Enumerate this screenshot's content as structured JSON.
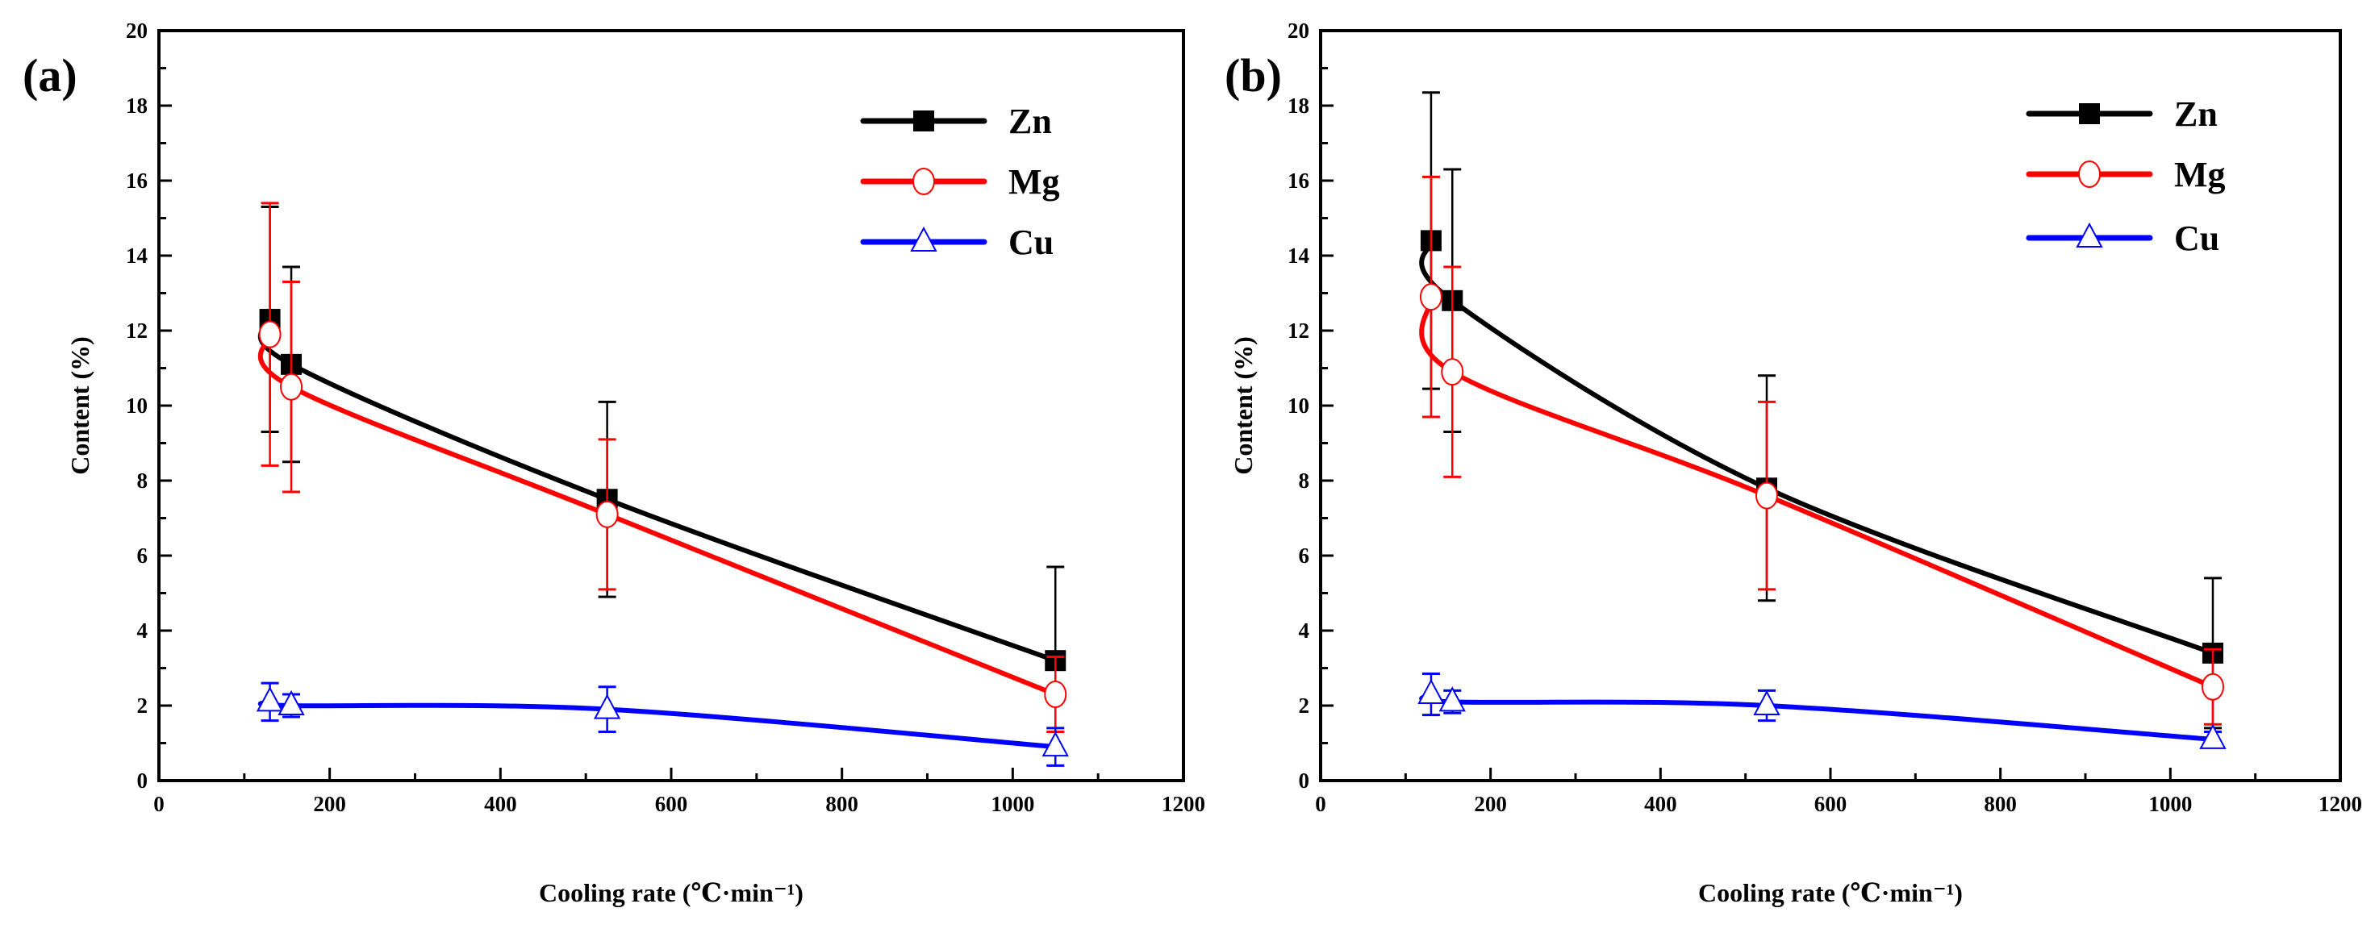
{
  "chart_data": [
    {
      "type": "line",
      "panel_label": "(a)",
      "xlabel": "Cooling rate (℃·min⁻¹)",
      "ylabel": "Content (%)",
      "xlim": [
        0,
        1200
      ],
      "ylim": [
        0,
        20
      ],
      "xticks": [
        "0",
        "200",
        "400",
        "600",
        "800",
        "1000",
        "1200"
      ],
      "yticks": [
        "0",
        "2",
        "4",
        "6",
        "8",
        "10",
        "12",
        "14",
        "16",
        "18",
        "20"
      ],
      "grid": false,
      "legend_position": "top-right",
      "x": [
        130,
        155,
        525,
        1050
      ],
      "series": [
        {
          "name": "Zn",
          "color": "#000000",
          "marker": "filled-square",
          "values": [
            12.3,
            11.1,
            7.5,
            3.2
          ],
          "errors": [
            3.0,
            2.6,
            2.6,
            2.5
          ]
        },
        {
          "name": "Mg",
          "color": "#ff0000",
          "marker": "open-circle",
          "values": [
            11.9,
            10.5,
            7.1,
            2.3
          ],
          "errors": [
            3.5,
            2.8,
            2.0,
            1.0
          ]
        },
        {
          "name": "Cu",
          "color": "#0000ff",
          "marker": "open-triangle",
          "values": [
            2.1,
            2.0,
            1.9,
            0.9
          ],
          "errors": [
            0.5,
            0.3,
            0.6,
            0.5
          ]
        }
      ]
    },
    {
      "type": "line",
      "panel_label": "(b)",
      "xlabel": "Cooling rate (℃·min⁻¹)",
      "ylabel": "Content (%)",
      "xlim": [
        0,
        1200
      ],
      "ylim": [
        0,
        20
      ],
      "xticks": [
        "0",
        "200",
        "400",
        "600",
        "800",
        "1000",
        "1200"
      ],
      "yticks": [
        "0",
        "2",
        "4",
        "6",
        "8",
        "10",
        "12",
        "14",
        "16",
        "18",
        "20"
      ],
      "grid": false,
      "legend_position": "top-right",
      "x": [
        130,
        155,
        525,
        1050
      ],
      "series": [
        {
          "name": "Zn",
          "color": "#000000",
          "marker": "filled-square",
          "values": [
            14.4,
            12.8,
            7.8,
            3.4
          ],
          "errors": [
            3.95,
            3.5,
            3.0,
            2.0
          ]
        },
        {
          "name": "Mg",
          "color": "#ff0000",
          "marker": "open-circle",
          "values": [
            12.9,
            10.9,
            7.6,
            2.5
          ],
          "errors": [
            3.2,
            2.8,
            2.5,
            1.0
          ]
        },
        {
          "name": "Cu",
          "color": "#0000ff",
          "marker": "open-triangle",
          "values": [
            2.3,
            2.1,
            2.0,
            1.1
          ],
          "errors": [
            0.55,
            0.3,
            0.4,
            0.2
          ]
        }
      ]
    }
  ]
}
